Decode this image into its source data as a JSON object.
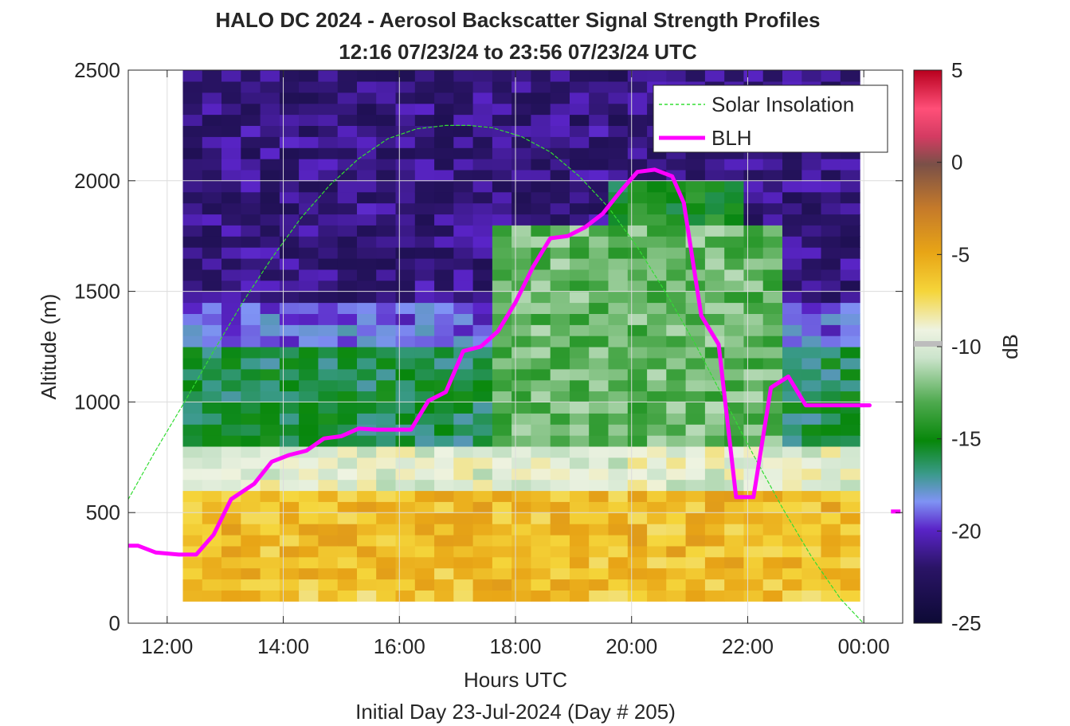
{
  "chart_data": {
    "type": "heatmap",
    "title_line1": "HALO DC 2024 - Aerosol Backscatter Signal Strength Profiles",
    "title_line2": "12:16 07/23/24 to 23:56 07/23/24  UTC",
    "xlabel": "Hours UTC",
    "xlabel2": "Initial Day 23-Jul-2024 (Day # 205)",
    "ylabel": "Altitude (m)",
    "colorbar_label": "dB",
    "xlim": [
      11.33,
      24.67
    ],
    "ylim": [
      0,
      2500
    ],
    "x_ticks": [
      12,
      14,
      16,
      18,
      20,
      22,
      24
    ],
    "x_tick_labels": [
      "12:00",
      "14:00",
      "16:00",
      "18:00",
      "20:00",
      "22:00",
      "00:00"
    ],
    "y_ticks": [
      0,
      500,
      1000,
      1500,
      2000,
      2500
    ],
    "y_tick_labels": [
      "0",
      "500",
      "1000",
      "1500",
      "2000",
      "2500"
    ],
    "clim": [
      -25,
      5
    ],
    "c_ticks": [
      -25,
      -20,
      -15,
      -10,
      -5,
      0,
      5
    ],
    "c_tick_labels": [
      "-25",
      "-20",
      "-15",
      "-10",
      "-5",
      "0",
      "5"
    ],
    "grid": true,
    "legend_location": "top-right",
    "heatmap": {
      "x_start": 12.27,
      "x_end": 23.93,
      "x_cells": 35,
      "y_start": 100,
      "y_end": 2500,
      "y_cells": 48,
      "layers": [
        {
          "top": 150,
          "value": -6.5
        },
        {
          "top": 600,
          "value": -6.0
        },
        {
          "top": 800,
          "value": -9.5
        },
        {
          "top": 1250,
          "value": -16.0
        },
        {
          "top": 1450,
          "value": -19.0
        },
        {
          "top": 2500,
          "value": -21.5
        }
      ]
    },
    "series": [
      {
        "name": "Solar Insolation",
        "color": "#33dd33",
        "style": "dashed",
        "x": [
          11.33,
          11.8,
          12.3,
          12.8,
          13.3,
          13.8,
          14.3,
          14.8,
          15.3,
          15.8,
          16.3,
          16.8,
          17.2,
          17.6,
          18.1,
          18.6,
          19.1,
          19.6,
          20.1,
          20.6,
          21.1,
          21.6,
          22.1,
          22.6,
          23.1,
          23.6,
          24.1,
          24.4,
          24.67
        ],
        "y": [
          560,
          780,
          1000,
          1230,
          1450,
          1650,
          1830,
          1980,
          2100,
          2190,
          2235,
          2250,
          2250,
          2240,
          2200,
          2130,
          2020,
          1880,
          1700,
          1490,
          1260,
          1010,
          760,
          520,
          300,
          110,
          -30,
          -60,
          0
        ]
      },
      {
        "name": "BLH",
        "color": "#ff00ff",
        "style": "solid",
        "x": [
          11.33,
          11.5,
          11.8,
          12.2,
          12.5,
          12.8,
          13.1,
          13.5,
          13.8,
          14.1,
          14.4,
          14.7,
          15.0,
          15.3,
          15.6,
          15.9,
          16.2,
          16.5,
          16.8,
          17.1,
          17.4,
          17.7,
          18.0,
          18.3,
          18.6,
          18.9,
          19.2,
          19.5,
          19.8,
          20.1,
          20.4,
          20.7,
          20.9,
          21.2,
          21.5,
          21.8,
          22.1,
          22.4,
          22.7,
          23.0,
          23.2,
          23.5,
          23.8,
          24.1
        ],
        "y": [
          350,
          350,
          320,
          310,
          310,
          400,
          560,
          630,
          730,
          760,
          780,
          835,
          845,
          880,
          875,
          875,
          875,
          1005,
          1045,
          1230,
          1250,
          1320,
          1450,
          1610,
          1740,
          1750,
          1790,
          1850,
          1950,
          2040,
          2050,
          2020,
          1900,
          1390,
          1260,
          570,
          570,
          1065,
          1115,
          985,
          985,
          985,
          985,
          985
        ]
      }
    ],
    "extra_marker": {
      "x": 24.55,
      "y": 505,
      "color": "#ff00ff"
    }
  }
}
